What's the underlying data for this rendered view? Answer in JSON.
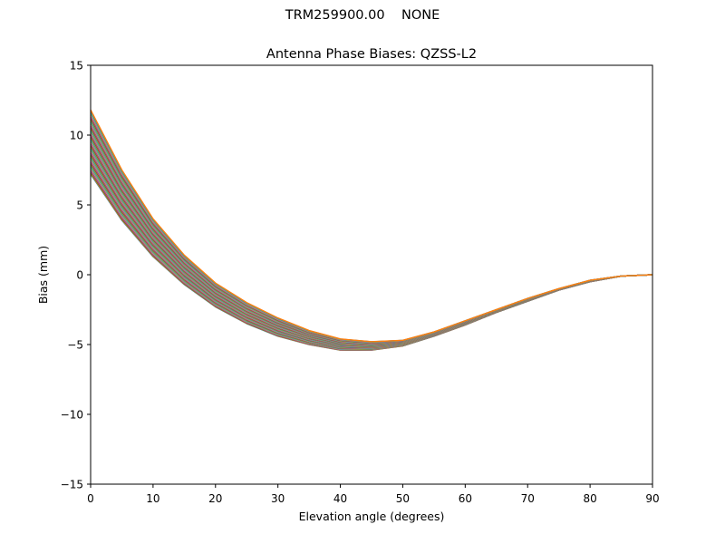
{
  "figure": {
    "suptitle": "TRM259900.00    NONE"
  },
  "chart_data": {
    "type": "line",
    "title": "Antenna Phase Biases: QZSS-L2",
    "xlabel": "Elevation angle (degrees)",
    "ylabel": "Bias (mm)",
    "xlim": [
      0,
      90
    ],
    "ylim": [
      -15,
      15
    ],
    "xticks": [
      0,
      10,
      20,
      30,
      40,
      50,
      60,
      70,
      80,
      90
    ],
    "yticks": [
      -15,
      -10,
      -5,
      0,
      5,
      10,
      15
    ],
    "xtick_labels": [
      "0",
      "10",
      "20",
      "30",
      "40",
      "50",
      "60",
      "70",
      "80",
      "90"
    ],
    "ytick_labels": [
      "−15",
      "−10",
      "−5",
      "0",
      "5",
      "10",
      "15"
    ],
    "grid": false,
    "legend": "none",
    "x": [
      0,
      5,
      10,
      15,
      20,
      25,
      30,
      35,
      40,
      45,
      50,
      55,
      60,
      65,
      70,
      75,
      80,
      85,
      90
    ],
    "envelope": {
      "description_values": "upper and lower bounds of the family of azimuth curves",
      "upper": [
        11.8,
        7.5,
        4.0,
        1.4,
        -0.6,
        -2.0,
        -3.1,
        -4.0,
        -4.6,
        -4.8,
        -4.7,
        -4.1,
        -3.3,
        -2.5,
        -1.7,
        -1.0,
        -0.4,
        -0.1,
        0.0
      ],
      "lower": [
        7.2,
        3.9,
        1.3,
        -0.7,
        -2.3,
        -3.5,
        -4.4,
        -5.0,
        -5.4,
        -5.4,
        -5.1,
        -4.4,
        -3.6,
        -2.7,
        -1.9,
        -1.1,
        -0.5,
        -0.1,
        0.0
      ]
    },
    "series_count": 72,
    "series_colors": [
      "#1f77b4",
      "#ff7f0e",
      "#2ca02c",
      "#d62728",
      "#9467bd",
      "#8c564b",
      "#e377c2",
      "#7f7f7f",
      "#bcbd22",
      "#17becf"
    ]
  }
}
